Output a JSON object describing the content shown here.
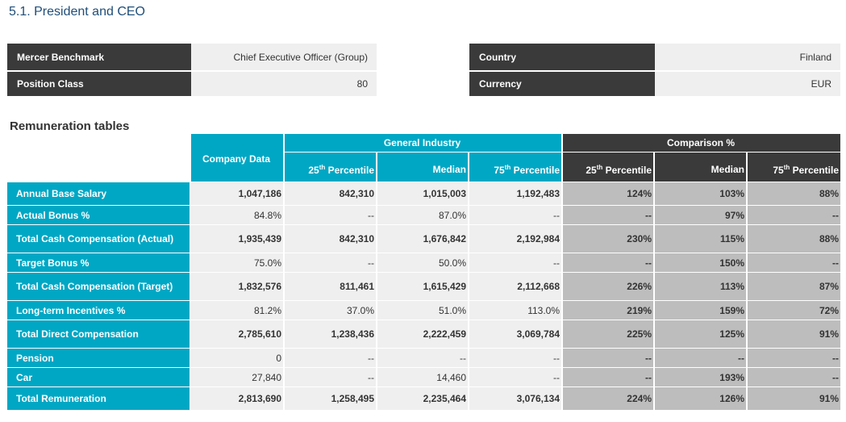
{
  "section_title": "5.1. President and CEO",
  "info_left": [
    {
      "label": "Mercer Benchmark",
      "value": "Chief Executive Officer (Group)"
    },
    {
      "label": "Position Class",
      "value": "80"
    }
  ],
  "info_right": [
    {
      "label": "Country",
      "value": "Finland"
    },
    {
      "label": "Currency",
      "value": "EUR"
    }
  ],
  "remuneration_title": "Remuneration tables",
  "table": {
    "company_header": "Company Data",
    "group_general": "General Industry",
    "group_comparison": "Comparison %",
    "sub_headers": {
      "p25_num": "25",
      "p75_num": "75",
      "ordinal": "th",
      "percentile": "Percentile",
      "median": "Median"
    },
    "rows": [
      {
        "label": "Annual Base Salary",
        "bold": true,
        "company": "1,047,186",
        "gi_p25": "842,310",
        "gi_median": "1,015,003",
        "gi_p75": "1,192,483",
        "cmp_p25": "124%",
        "cmp_median": "103%",
        "cmp_p75": "88%"
      },
      {
        "label": "Actual Bonus %",
        "bold": false,
        "company": "84.8%",
        "gi_p25": "--",
        "gi_median": "87.0%",
        "gi_p75": "--",
        "cmp_p25": "--",
        "cmp_median": "97%",
        "cmp_p75": "--"
      },
      {
        "label": "Total Cash Compensation (Actual)",
        "bold": true,
        "company": "1,935,439",
        "gi_p25": "842,310",
        "gi_median": "1,676,842",
        "gi_p75": "2,192,984",
        "cmp_p25": "230%",
        "cmp_median": "115%",
        "cmp_p75": "88%"
      },
      {
        "label": "Target Bonus %",
        "bold": false,
        "company": "75.0%",
        "gi_p25": "--",
        "gi_median": "50.0%",
        "gi_p75": "--",
        "cmp_p25": "--",
        "cmp_median": "150%",
        "cmp_p75": "--"
      },
      {
        "label": "Total Cash Compensation (Target)",
        "bold": true,
        "company": "1,832,576",
        "gi_p25": "811,461",
        "gi_median": "1,615,429",
        "gi_p75": "2,112,668",
        "cmp_p25": "226%",
        "cmp_median": "113%",
        "cmp_p75": "87%"
      },
      {
        "label": "Long-term Incentives %",
        "bold": false,
        "company": "81.2%",
        "gi_p25": "37.0%",
        "gi_median": "51.0%",
        "gi_p75": "113.0%",
        "cmp_p25": "219%",
        "cmp_median": "159%",
        "cmp_p75": "72%"
      },
      {
        "label": "Total Direct Compensation",
        "bold": true,
        "company": "2,785,610",
        "gi_p25": "1,238,436",
        "gi_median": "2,222,459",
        "gi_p75": "3,069,784",
        "cmp_p25": "225%",
        "cmp_median": "125%",
        "cmp_p75": "91%"
      },
      {
        "label": "Pension",
        "bold": false,
        "company": "0",
        "gi_p25": "--",
        "gi_median": "--",
        "gi_p75": "--",
        "cmp_p25": "--",
        "cmp_median": "--",
        "cmp_p75": "--"
      },
      {
        "label": "Car",
        "bold": false,
        "company": "27,840",
        "gi_p25": "--",
        "gi_median": "14,460",
        "gi_p75": "--",
        "cmp_p25": "--",
        "cmp_median": "193%",
        "cmp_p75": "--"
      },
      {
        "label": "Total Remuneration",
        "bold": true,
        "company": "2,813,690",
        "gi_p25": "1,258,495",
        "gi_median": "2,235,464",
        "gi_p75": "3,076,134",
        "cmp_p25": "224%",
        "cmp_median": "126%",
        "cmp_p75": "91%"
      }
    ]
  }
}
